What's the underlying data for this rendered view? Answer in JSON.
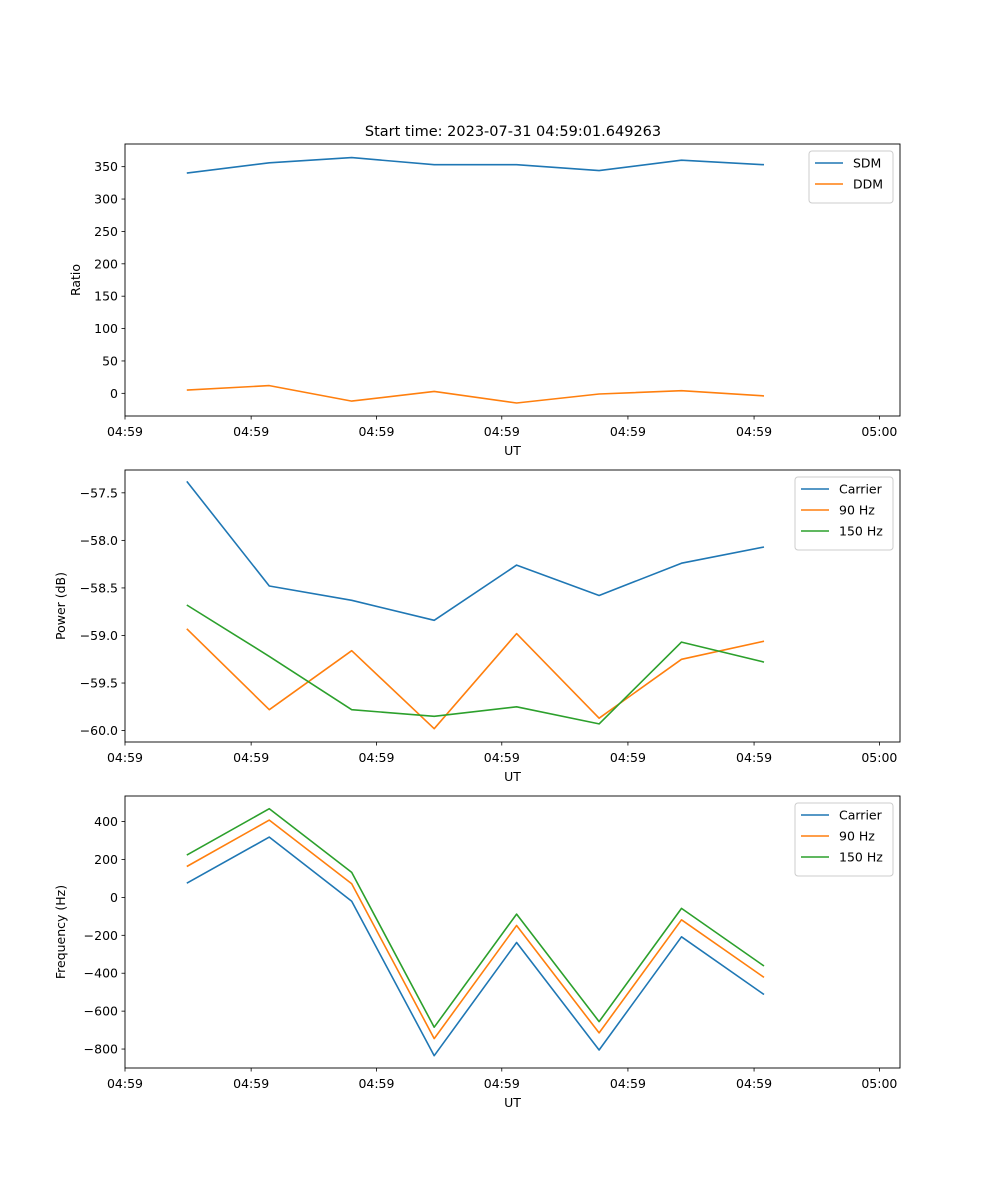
{
  "figure": {
    "title": "Start time: 2023-07-31 04:59:01.649263"
  },
  "chart_data": [
    {
      "type": "line",
      "title": "Start time: 2023-07-31 04:59:01.649263",
      "xlabel": "UT",
      "ylabel": "Ratio",
      "x": [
        0,
        1,
        2,
        3,
        4,
        5,
        6,
        7
      ],
      "xlim": [
        -0.75,
        8.65
      ],
      "xticks": [
        -0.75,
        0.78,
        2.3,
        3.82,
        5.35,
        6.88,
        8.4
      ],
      "xtick_labels": [
        "04:59",
        "04:59",
        "04:59",
        "04:59",
        "04:59",
        "04:59",
        "05:00"
      ],
      "ylim": [
        -35,
        385
      ],
      "yticks": [
        0,
        50,
        100,
        150,
        200,
        250,
        300,
        350
      ],
      "ytick_labels": [
        "0",
        "50",
        "100",
        "150",
        "200",
        "250",
        "300",
        "350"
      ],
      "legend": "top-right",
      "series": [
        {
          "name": "SDM",
          "color": "#1f77b4",
          "values": [
            340,
            356,
            364,
            353,
            353,
            344,
            360,
            353
          ]
        },
        {
          "name": "DDM",
          "color": "#ff7f0e",
          "values": [
            5,
            12,
            -12,
            3,
            -15,
            -1,
            4,
            -4
          ]
        }
      ]
    },
    {
      "type": "line",
      "xlabel": "UT",
      "ylabel": "Power (dB)",
      "x": [
        0,
        1,
        2,
        3,
        4,
        5,
        6,
        7
      ],
      "xlim": [
        -0.75,
        8.65
      ],
      "xticks": [
        -0.75,
        0.78,
        2.3,
        3.82,
        5.35,
        6.88,
        8.4
      ],
      "xtick_labels": [
        "04:59",
        "04:59",
        "04:59",
        "04:59",
        "04:59",
        "04:59",
        "05:00"
      ],
      "ylim": [
        -60.12,
        -57.26
      ],
      "yticks": [
        -60.0,
        -59.5,
        -59.0,
        -58.5,
        -58.0,
        -57.5
      ],
      "ytick_labels": [
        "−60.0",
        "−59.5",
        "−59.0",
        "−58.5",
        "−58.0",
        "−57.5"
      ],
      "legend": "top-right",
      "series": [
        {
          "name": "Carrier",
          "color": "#1f77b4",
          "values": [
            -57.38,
            -58.48,
            -58.63,
            -58.84,
            -58.26,
            -58.58,
            -58.24,
            -58.07
          ]
        },
        {
          "name": "90 Hz",
          "color": "#ff7f0e",
          "values": [
            -58.93,
            -59.78,
            -59.16,
            -59.98,
            -58.98,
            -59.87,
            -59.25,
            -59.06
          ]
        },
        {
          "name": "150 Hz",
          "color": "#2ca02c",
          "values": [
            -58.68,
            -59.22,
            -59.78,
            -59.85,
            -59.75,
            -59.93,
            -59.07,
            -59.28
          ]
        }
      ]
    },
    {
      "type": "line",
      "xlabel": "UT",
      "ylabel": "Frequency (Hz)",
      "x": [
        0,
        1,
        2,
        3,
        4,
        5,
        6,
        7
      ],
      "xlim": [
        -0.75,
        8.65
      ],
      "xticks": [
        -0.75,
        0.78,
        2.3,
        3.82,
        5.35,
        6.88,
        8.4
      ],
      "xtick_labels": [
        "04:59",
        "04:59",
        "04:59",
        "04:59",
        "04:59",
        "04:59",
        "05:00"
      ],
      "ylim": [
        -900,
        535
      ],
      "yticks": [
        -800,
        -600,
        -400,
        -200,
        0,
        200,
        400
      ],
      "ytick_labels": [
        "−800",
        "−600",
        "−400",
        "−200",
        "0",
        "200",
        "400"
      ],
      "legend": "top-right",
      "series": [
        {
          "name": "Carrier",
          "color": "#1f77b4",
          "values": [
            75,
            318,
            -20,
            -835,
            -238,
            -805,
            -208,
            -512
          ]
        },
        {
          "name": "90 Hz",
          "color": "#ff7f0e",
          "values": [
            163,
            408,
            72,
            -745,
            -148,
            -715,
            -118,
            -422
          ]
        },
        {
          "name": "150 Hz",
          "color": "#2ca02c",
          "values": [
            223,
            468,
            132,
            -685,
            -88,
            -655,
            -58,
            -362
          ]
        }
      ]
    }
  ]
}
